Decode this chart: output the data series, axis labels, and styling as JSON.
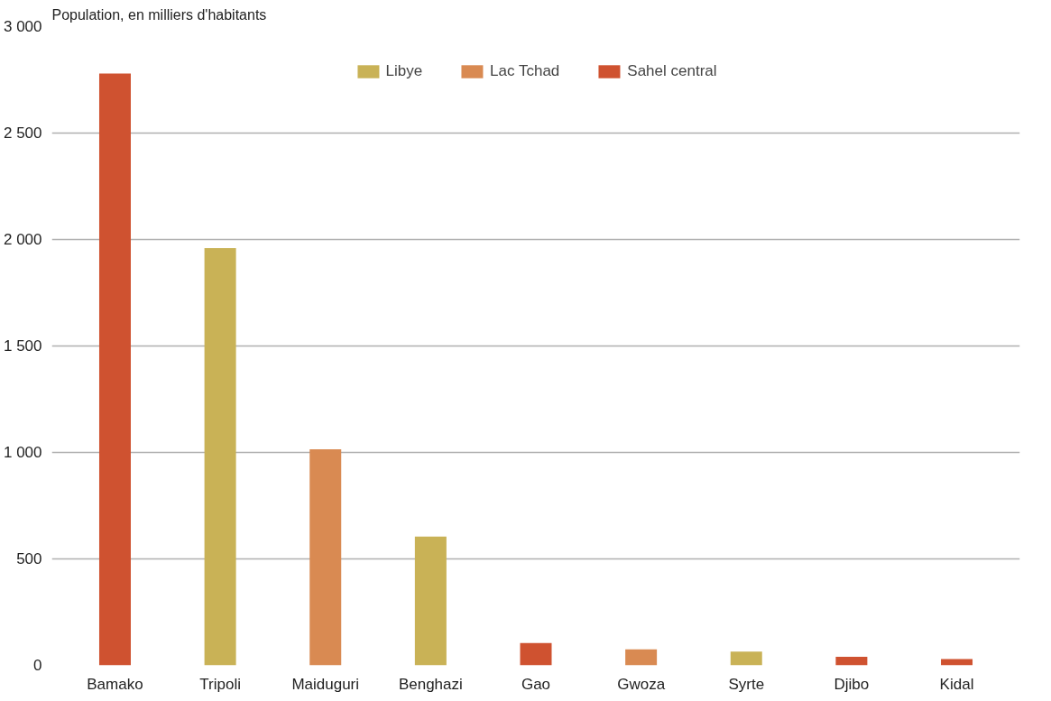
{
  "chart_data": {
    "type": "bar",
    "ylabel": "Population, en milliers d'habitants",
    "categories": [
      "Bamako",
      "Tripoli",
      "Maiduguri",
      "Benghazi",
      "Gao",
      "Gwoza",
      "Syrte",
      "Djibo",
      "Kidal"
    ],
    "series": [
      {
        "name": "Libye",
        "color": "#c9b256",
        "values": [
          null,
          1960,
          null,
          605,
          null,
          null,
          65,
          null,
          null
        ]
      },
      {
        "name": "Lac Tchad",
        "color": "#d98a52",
        "values": [
          null,
          null,
          1015,
          null,
          null,
          75,
          null,
          null,
          null
        ]
      },
      {
        "name": "Sahel central",
        "color": "#cf5230",
        "values": [
          2780,
          null,
          null,
          null,
          105,
          null,
          null,
          40,
          30
        ]
      }
    ],
    "ylim": [
      0,
      3000
    ],
    "yticks": [
      0,
      500,
      {
        "value": 1000,
        "label": "1 000"
      },
      {
        "value": 1500,
        "label": "1 500"
      },
      {
        "value": 2000,
        "label": "2 000"
      },
      {
        "value": 2500,
        "label": "2 500"
      },
      {
        "value": 3000,
        "label": "3 000"
      }
    ],
    "grid": "y",
    "legend": "top"
  }
}
